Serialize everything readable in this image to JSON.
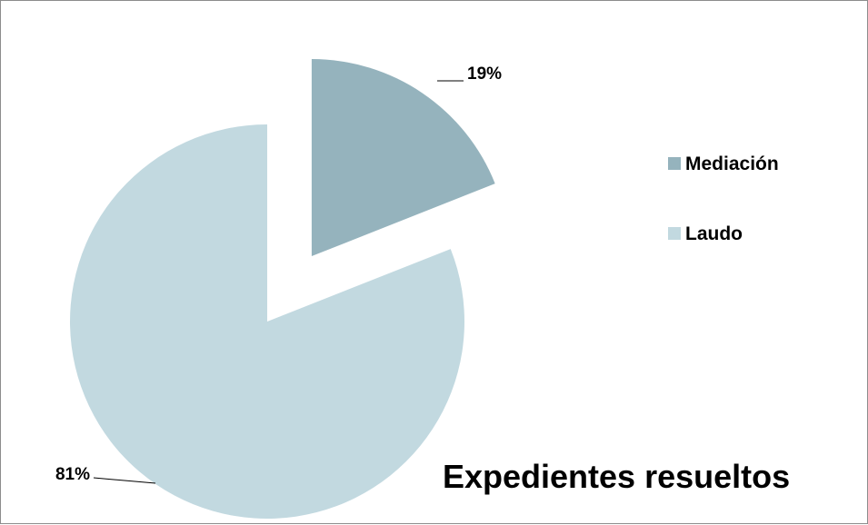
{
  "chart_data": {
    "type": "pie",
    "title": "Expedientes resueltos",
    "slices": [
      {
        "label": "Mediación",
        "value": 19,
        "display": "19%",
        "color": "#95b3bd",
        "exploded": true
      },
      {
        "label": "Laudo",
        "value": 81,
        "display": "81%",
        "color": "#c2d9e0",
        "exploded": false
      }
    ],
    "legend_position": "right"
  }
}
